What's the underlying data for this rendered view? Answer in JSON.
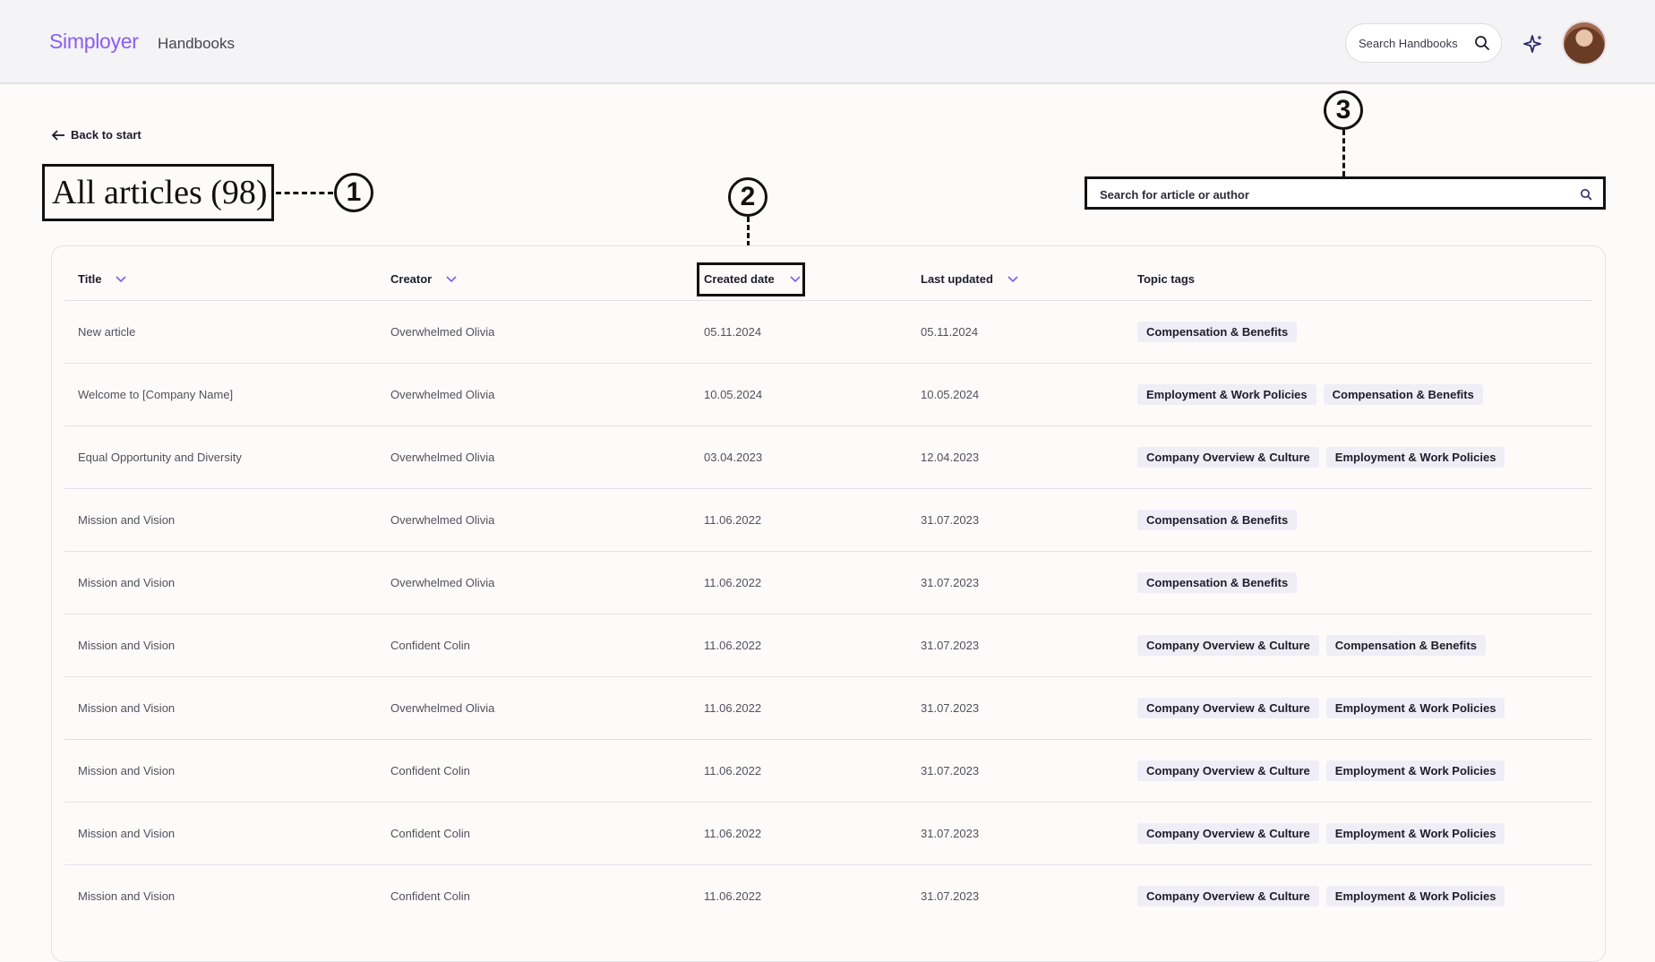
{
  "header": {
    "logo": "Simployer",
    "app_name": "Handbooks",
    "search_placeholder": "Search Handbooks"
  },
  "page": {
    "back_label": "Back to start",
    "title": "All articles (98)",
    "search_placeholder": "Search for article or author"
  },
  "callouts": [
    "1",
    "2",
    "3"
  ],
  "columns": [
    "Title",
    "Creator",
    "Created date",
    "Last updated",
    "Topic tags"
  ],
  "rows": [
    {
      "title": "New article",
      "creator": "Overwhelmed Olivia",
      "created": "05.11.2024",
      "updated": "05.11.2024",
      "tags": [
        "Compensation & Benefits"
      ]
    },
    {
      "title": "Welcome to [Company Name]",
      "creator": "Overwhelmed Olivia",
      "created": "10.05.2024",
      "updated": "10.05.2024",
      "tags": [
        "Employment & Work Policies",
        "Compensation & Benefits"
      ]
    },
    {
      "title": "Equal Opportunity and Diversity",
      "creator": "Overwhelmed Olivia",
      "created": "03.04.2023",
      "updated": "12.04.2023",
      "tags": [
        "Company Overview & Culture",
        "Employment & Work Policies"
      ]
    },
    {
      "title": "Mission and Vision",
      "creator": "Overwhelmed Olivia",
      "created": "11.06.2022",
      "updated": "31.07.2023",
      "tags": [
        "Compensation & Benefits"
      ]
    },
    {
      "title": "Mission and Vision",
      "creator": "Overwhelmed Olivia",
      "created": "11.06.2022",
      "updated": "31.07.2023",
      "tags": [
        "Compensation & Benefits"
      ]
    },
    {
      "title": "Mission and Vision",
      "creator": "Confident Colin",
      "created": "11.06.2022",
      "updated": "31.07.2023",
      "tags": [
        "Company Overview & Culture",
        "Compensation & Benefits"
      ]
    },
    {
      "title": "Mission and Vision",
      "creator": "Overwhelmed Olivia",
      "created": "11.06.2022",
      "updated": "31.07.2023",
      "tags": [
        "Company Overview & Culture",
        "Employment & Work Policies"
      ]
    },
    {
      "title": "Mission and Vision",
      "creator": "Confident Colin",
      "created": "11.06.2022",
      "updated": "31.07.2023",
      "tags": [
        "Company Overview & Culture",
        "Employment & Work Policies"
      ]
    },
    {
      "title": "Mission and Vision",
      "creator": "Confident Colin",
      "created": "11.06.2022",
      "updated": "31.07.2023",
      "tags": [
        "Company Overview & Culture",
        "Employment & Work Policies"
      ]
    },
    {
      "title": "Mission and Vision",
      "creator": "Confident Colin",
      "created": "11.06.2022",
      "updated": "31.07.2023",
      "tags": [
        "Company Overview & Culture",
        "Employment & Work Policies"
      ]
    }
  ]
}
